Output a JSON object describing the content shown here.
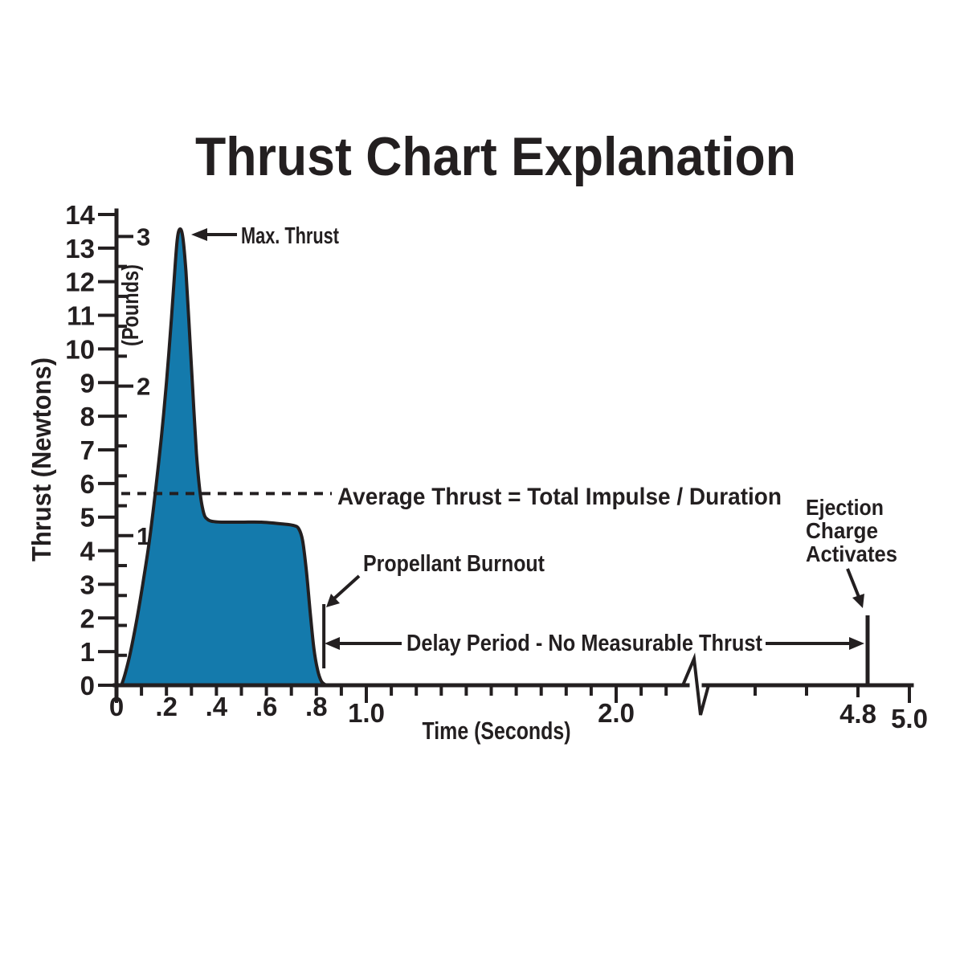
{
  "chart_data": {
    "type": "area",
    "title": "Thrust Chart Explanation",
    "xlabel": "Time (Seconds)",
    "ylabel": "Thrust (Newtons)",
    "y2label": "(Pounds)",
    "xlim": [
      0,
      5.0
    ],
    "ylim": [
      0,
      14
    ],
    "grid": false,
    "x_tick_labels": [
      "0",
      ".2",
      ".4",
      ".6",
      ".8",
      "1.0",
      "2.0",
      "4.8",
      "5.0"
    ],
    "x_tick_values": [
      0,
      0.2,
      0.4,
      0.6,
      0.8,
      1.0,
      2.0,
      4.8,
      5.0
    ],
    "x_minor_tick_step": 0.1,
    "x_axis_break_at": 2.3,
    "y_tick_labels": [
      "0",
      "1",
      "2",
      "3",
      "4",
      "5",
      "6",
      "7",
      "8",
      "9",
      "10",
      "11",
      "12",
      "13",
      "14"
    ],
    "y2_tick_labels": [
      "1",
      "2",
      "3"
    ],
    "y2_tick_values_lb": [
      1,
      2,
      3
    ],
    "y2_minor_tick_step_lb": 0.2,
    "newtons_per_pound": 4.448,
    "series": [
      {
        "name": "Thrust Curve",
        "fill_color": "#147aac",
        "stroke_color": "#231f20",
        "points": [
          [
            0.02,
            0.0
          ],
          [
            0.035,
            0.35
          ],
          [
            0.055,
            0.95
          ],
          [
            0.08,
            1.9
          ],
          [
            0.105,
            3.0
          ],
          [
            0.13,
            4.2
          ],
          [
            0.155,
            5.7
          ],
          [
            0.18,
            7.4
          ],
          [
            0.2,
            9.0
          ],
          [
            0.22,
            10.9
          ],
          [
            0.233,
            12.3
          ],
          [
            0.244,
            13.3
          ],
          [
            0.255,
            13.57
          ],
          [
            0.266,
            13.3
          ],
          [
            0.278,
            12.3
          ],
          [
            0.29,
            10.8
          ],
          [
            0.305,
            8.8
          ],
          [
            0.32,
            6.9
          ],
          [
            0.335,
            5.7
          ],
          [
            0.35,
            5.1
          ],
          [
            0.365,
            4.93
          ],
          [
            0.385,
            4.87
          ],
          [
            0.42,
            4.85
          ],
          [
            0.5,
            4.85
          ],
          [
            0.58,
            4.85
          ],
          [
            0.66,
            4.8
          ],
          [
            0.71,
            4.75
          ],
          [
            0.73,
            4.65
          ],
          [
            0.745,
            4.3
          ],
          [
            0.76,
            3.4
          ],
          [
            0.775,
            2.2
          ],
          [
            0.79,
            1.1
          ],
          [
            0.805,
            0.45
          ],
          [
            0.82,
            0.12
          ],
          [
            0.835,
            0.02
          ],
          [
            0.845,
            0.0
          ]
        ]
      }
    ],
    "max_thrust_n": 13.5,
    "average_thrust_n": 5.7,
    "propellant_burnout_s": 0.83,
    "ejection_charge_s": 4.8,
    "annotations": {
      "max_thrust": "Max. Thrust",
      "average_thrust": "Average Thrust = Total Impulse / Duration",
      "propellant_burnout": "Propellant Burnout",
      "delay_period": "Delay Period - No Measurable Thrust",
      "ejection_line1": "Ejection",
      "ejection_line2": "Charge",
      "ejection_line3": "Activates"
    },
    "colors": {
      "curve_fill": "#147aac",
      "ink": "#231f20",
      "background": "#ffffff"
    }
  }
}
